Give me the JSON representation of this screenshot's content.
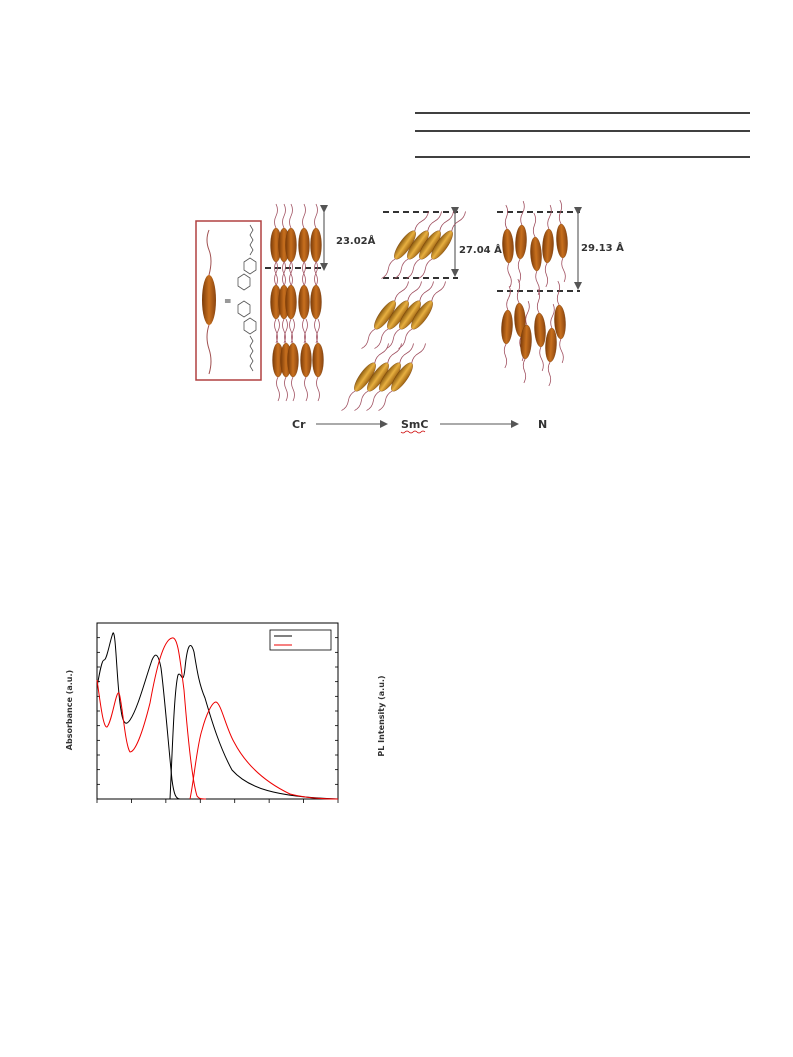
{
  "figure1": {
    "spacings": [
      "23.02Å",
      "27.04 Å",
      "29.13 Å"
    ],
    "phases": [
      "Cr",
      "SmC",
      "N"
    ]
  },
  "figure2": {
    "y_label": "Absorbance (a.u.)",
    "y2_label": "PL Intensity (a.u.)"
  }
}
